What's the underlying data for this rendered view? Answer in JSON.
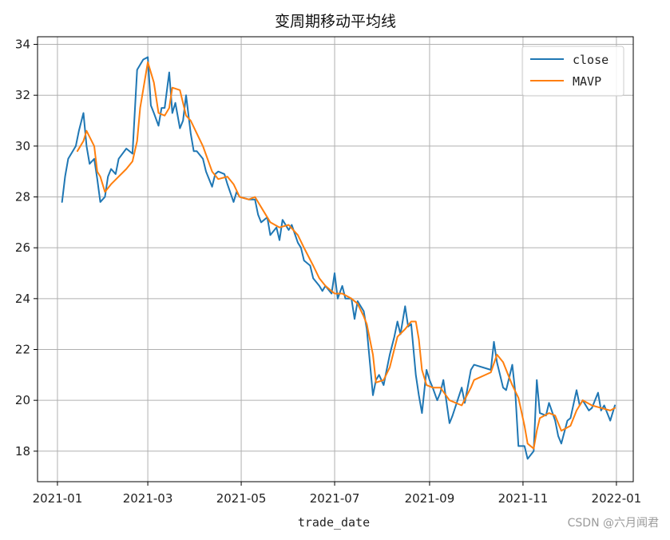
{
  "chart_data": {
    "type": "line",
    "title": "变周期移动平均线",
    "xlabel": "trade_date",
    "ylabel": "",
    "xlim": [
      "2020-12-19",
      "2022-01-12"
    ],
    "ylim": [
      16.8,
      34.3
    ],
    "x_ticks": [
      "2021-01",
      "2021-03",
      "2021-05",
      "2021-07",
      "2021-09",
      "2021-11",
      "2022-01"
    ],
    "y_ticks": [
      18,
      20,
      22,
      24,
      26,
      28,
      30,
      32,
      34
    ],
    "grid": true,
    "legend": "top-right",
    "series": [
      {
        "name": "close",
        "color": "#1f77b4",
        "points": [
          [
            "2021-01-04",
            27.8
          ],
          [
            "2021-01-06",
            28.8
          ],
          [
            "2021-01-08",
            29.5
          ],
          [
            "2021-01-11",
            29.8
          ],
          [
            "2021-01-13",
            30.0
          ],
          [
            "2021-01-15",
            30.6
          ],
          [
            "2021-01-18",
            31.3
          ],
          [
            "2021-01-20",
            30.0
          ],
          [
            "2021-01-22",
            29.3
          ],
          [
            "2021-01-25",
            29.5
          ],
          [
            "2021-01-27",
            28.7
          ],
          [
            "2021-01-29",
            27.8
          ],
          [
            "2021-02-01",
            28.0
          ],
          [
            "2021-02-03",
            28.8
          ],
          [
            "2021-02-05",
            29.1
          ],
          [
            "2021-02-08",
            28.9
          ],
          [
            "2021-02-10",
            29.5
          ],
          [
            "2021-02-15",
            29.9
          ],
          [
            "2021-02-19",
            29.7
          ],
          [
            "2021-02-22",
            33.0
          ],
          [
            "2021-02-24",
            33.2
          ],
          [
            "2021-02-26",
            33.4
          ],
          [
            "2021-03-01",
            33.5
          ],
          [
            "2021-03-03",
            31.6
          ],
          [
            "2021-03-05",
            31.3
          ],
          [
            "2021-03-08",
            30.8
          ],
          [
            "2021-03-10",
            31.5
          ],
          [
            "2021-03-12",
            31.5
          ],
          [
            "2021-03-15",
            32.9
          ],
          [
            "2021-03-17",
            31.3
          ],
          [
            "2021-03-19",
            31.7
          ],
          [
            "2021-03-22",
            30.7
          ],
          [
            "2021-03-24",
            31.0
          ],
          [
            "2021-03-26",
            32.0
          ],
          [
            "2021-03-29",
            30.5
          ],
          [
            "2021-03-31",
            29.8
          ],
          [
            "2021-04-02",
            29.8
          ],
          [
            "2021-04-06",
            29.5
          ],
          [
            "2021-04-08",
            29.0
          ],
          [
            "2021-04-12",
            28.4
          ],
          [
            "2021-04-14",
            28.9
          ],
          [
            "2021-04-16",
            29.0
          ],
          [
            "2021-04-20",
            28.9
          ],
          [
            "2021-04-22",
            28.5
          ],
          [
            "2021-04-26",
            27.8
          ],
          [
            "2021-04-28",
            28.2
          ],
          [
            "2021-04-30",
            28.0
          ],
          [
            "2021-05-06",
            27.9
          ],
          [
            "2021-05-10",
            27.9
          ],
          [
            "2021-05-12",
            27.3
          ],
          [
            "2021-05-14",
            27.0
          ],
          [
            "2021-05-18",
            27.2
          ],
          [
            "2021-05-20",
            26.5
          ],
          [
            "2021-05-24",
            26.8
          ],
          [
            "2021-05-26",
            26.3
          ],
          [
            "2021-05-28",
            27.1
          ],
          [
            "2021-06-01",
            26.7
          ],
          [
            "2021-06-03",
            26.9
          ],
          [
            "2021-06-07",
            26.2
          ],
          [
            "2021-06-09",
            26.0
          ],
          [
            "2021-06-11",
            25.5
          ],
          [
            "2021-06-15",
            25.3
          ],
          [
            "2021-06-17",
            24.8
          ],
          [
            "2021-06-21",
            24.5
          ],
          [
            "2021-06-23",
            24.3
          ],
          [
            "2021-06-25",
            24.5
          ],
          [
            "2021-06-29",
            24.2
          ],
          [
            "2021-07-01",
            25.0
          ],
          [
            "2021-07-03",
            24.0
          ],
          [
            "2021-07-06",
            24.5
          ],
          [
            "2021-07-08",
            24.0
          ],
          [
            "2021-07-12",
            24.0
          ],
          [
            "2021-07-14",
            23.2
          ],
          [
            "2021-07-16",
            23.9
          ],
          [
            "2021-07-20",
            23.5
          ],
          [
            "2021-07-22",
            22.8
          ],
          [
            "2021-07-26",
            20.2
          ],
          [
            "2021-07-28",
            20.8
          ],
          [
            "2021-07-30",
            21.0
          ],
          [
            "2021-08-02",
            20.6
          ],
          [
            "2021-08-04",
            21.2
          ],
          [
            "2021-08-06",
            21.8
          ],
          [
            "2021-08-09",
            22.5
          ],
          [
            "2021-08-11",
            23.1
          ],
          [
            "2021-08-13",
            22.6
          ],
          [
            "2021-08-16",
            23.7
          ],
          [
            "2021-08-18",
            22.9
          ],
          [
            "2021-08-20",
            23.0
          ],
          [
            "2021-08-23",
            21.0
          ],
          [
            "2021-08-25",
            20.2
          ],
          [
            "2021-08-27",
            19.5
          ],
          [
            "2021-08-30",
            21.2
          ],
          [
            "2021-09-01",
            20.8
          ],
          [
            "2021-09-03",
            20.5
          ],
          [
            "2021-09-06",
            20.0
          ],
          [
            "2021-09-08",
            20.3
          ],
          [
            "2021-09-10",
            20.8
          ],
          [
            "2021-09-14",
            19.1
          ],
          [
            "2021-09-16",
            19.4
          ],
          [
            "2021-09-22",
            20.5
          ],
          [
            "2021-09-24",
            19.9
          ],
          [
            "2021-09-28",
            21.2
          ],
          [
            "2021-09-30",
            21.4
          ],
          [
            "2021-10-11",
            21.2
          ],
          [
            "2021-10-13",
            22.3
          ],
          [
            "2021-10-15",
            21.5
          ],
          [
            "2021-10-19",
            20.5
          ],
          [
            "2021-10-21",
            20.4
          ],
          [
            "2021-10-25",
            21.4
          ],
          [
            "2021-10-27",
            20.3
          ],
          [
            "2021-10-29",
            18.2
          ],
          [
            "2021-11-02",
            18.2
          ],
          [
            "2021-11-04",
            17.7
          ],
          [
            "2021-11-08",
            18.0
          ],
          [
            "2021-11-10",
            20.8
          ],
          [
            "2021-11-12",
            19.5
          ],
          [
            "2021-11-16",
            19.4
          ],
          [
            "2021-11-18",
            19.9
          ],
          [
            "2021-11-22",
            19.2
          ],
          [
            "2021-11-24",
            18.6
          ],
          [
            "2021-11-26",
            18.3
          ],
          [
            "2021-11-30",
            19.2
          ],
          [
            "2021-12-02",
            19.3
          ],
          [
            "2021-12-06",
            20.4
          ],
          [
            "2021-12-08",
            19.8
          ],
          [
            "2021-12-10",
            20.0
          ],
          [
            "2021-12-14",
            19.6
          ],
          [
            "2021-12-16",
            19.7
          ],
          [
            "2021-12-20",
            20.3
          ],
          [
            "2021-12-22",
            19.6
          ],
          [
            "2021-12-24",
            19.8
          ],
          [
            "2021-12-28",
            19.2
          ],
          [
            "2021-12-31",
            19.8
          ]
        ]
      },
      {
        "name": "MAVP",
        "color": "#ff7f0e",
        "points": [
          [
            "2021-01-14",
            29.8
          ],
          [
            "2021-01-18",
            30.2
          ],
          [
            "2021-01-20",
            30.6
          ],
          [
            "2021-01-25",
            30.0
          ],
          [
            "2021-01-27",
            29.0
          ],
          [
            "2021-01-29",
            28.8
          ],
          [
            "2021-02-01",
            28.2
          ],
          [
            "2021-02-05",
            28.5
          ],
          [
            "2021-02-10",
            28.8
          ],
          [
            "2021-02-15",
            29.1
          ],
          [
            "2021-02-19",
            29.4
          ],
          [
            "2021-02-22",
            30.2
          ],
          [
            "2021-02-24",
            31.5
          ],
          [
            "2021-03-01",
            33.3
          ],
          [
            "2021-03-05",
            32.5
          ],
          [
            "2021-03-08",
            31.3
          ],
          [
            "2021-03-12",
            31.2
          ],
          [
            "2021-03-15",
            31.5
          ],
          [
            "2021-03-17",
            32.3
          ],
          [
            "2021-03-22",
            32.2
          ],
          [
            "2021-03-26",
            31.2
          ],
          [
            "2021-03-29",
            31.0
          ],
          [
            "2021-04-02",
            30.5
          ],
          [
            "2021-04-06",
            30.0
          ],
          [
            "2021-04-12",
            29.0
          ],
          [
            "2021-04-16",
            28.7
          ],
          [
            "2021-04-22",
            28.8
          ],
          [
            "2021-04-26",
            28.5
          ],
          [
            "2021-04-30",
            28.0
          ],
          [
            "2021-05-06",
            27.9
          ],
          [
            "2021-05-10",
            28.0
          ],
          [
            "2021-05-14",
            27.6
          ],
          [
            "2021-05-20",
            27.0
          ],
          [
            "2021-05-26",
            26.8
          ],
          [
            "2021-06-01",
            26.9
          ],
          [
            "2021-06-07",
            26.5
          ],
          [
            "2021-06-11",
            26.0
          ],
          [
            "2021-06-17",
            25.3
          ],
          [
            "2021-06-21",
            24.8
          ],
          [
            "2021-06-25",
            24.5
          ],
          [
            "2021-07-01",
            24.2
          ],
          [
            "2021-07-06",
            24.2
          ],
          [
            "2021-07-12",
            24.0
          ],
          [
            "2021-07-16",
            23.8
          ],
          [
            "2021-07-20",
            23.3
          ],
          [
            "2021-07-22",
            23.0
          ],
          [
            "2021-07-26",
            21.8
          ],
          [
            "2021-07-28",
            20.7
          ],
          [
            "2021-08-02",
            20.8
          ],
          [
            "2021-08-06",
            21.3
          ],
          [
            "2021-08-11",
            22.5
          ],
          [
            "2021-08-16",
            22.8
          ],
          [
            "2021-08-20",
            23.1
          ],
          [
            "2021-08-23",
            23.1
          ],
          [
            "2021-08-25",
            22.4
          ],
          [
            "2021-08-27",
            21.2
          ],
          [
            "2021-08-30",
            20.6
          ],
          [
            "2021-09-03",
            20.5
          ],
          [
            "2021-09-08",
            20.5
          ],
          [
            "2021-09-14",
            20.0
          ],
          [
            "2021-09-22",
            19.8
          ],
          [
            "2021-09-28",
            20.5
          ],
          [
            "2021-09-30",
            20.8
          ],
          [
            "2021-10-11",
            21.1
          ],
          [
            "2021-10-15",
            21.8
          ],
          [
            "2021-10-19",
            21.5
          ],
          [
            "2021-10-25",
            20.6
          ],
          [
            "2021-10-29",
            20.1
          ],
          [
            "2021-11-02",
            19.0
          ],
          [
            "2021-11-04",
            18.3
          ],
          [
            "2021-11-08",
            18.1
          ],
          [
            "2021-11-10",
            18.8
          ],
          [
            "2021-11-12",
            19.3
          ],
          [
            "2021-11-18",
            19.5
          ],
          [
            "2021-11-22",
            19.4
          ],
          [
            "2021-11-26",
            18.8
          ],
          [
            "2021-12-02",
            19.0
          ],
          [
            "2021-12-06",
            19.6
          ],
          [
            "2021-12-10",
            20.0
          ],
          [
            "2021-12-16",
            19.8
          ],
          [
            "2021-12-22",
            19.7
          ],
          [
            "2021-12-28",
            19.6
          ],
          [
            "2021-12-31",
            19.7
          ]
        ]
      }
    ]
  },
  "watermark": "CSDN @六月闻君"
}
